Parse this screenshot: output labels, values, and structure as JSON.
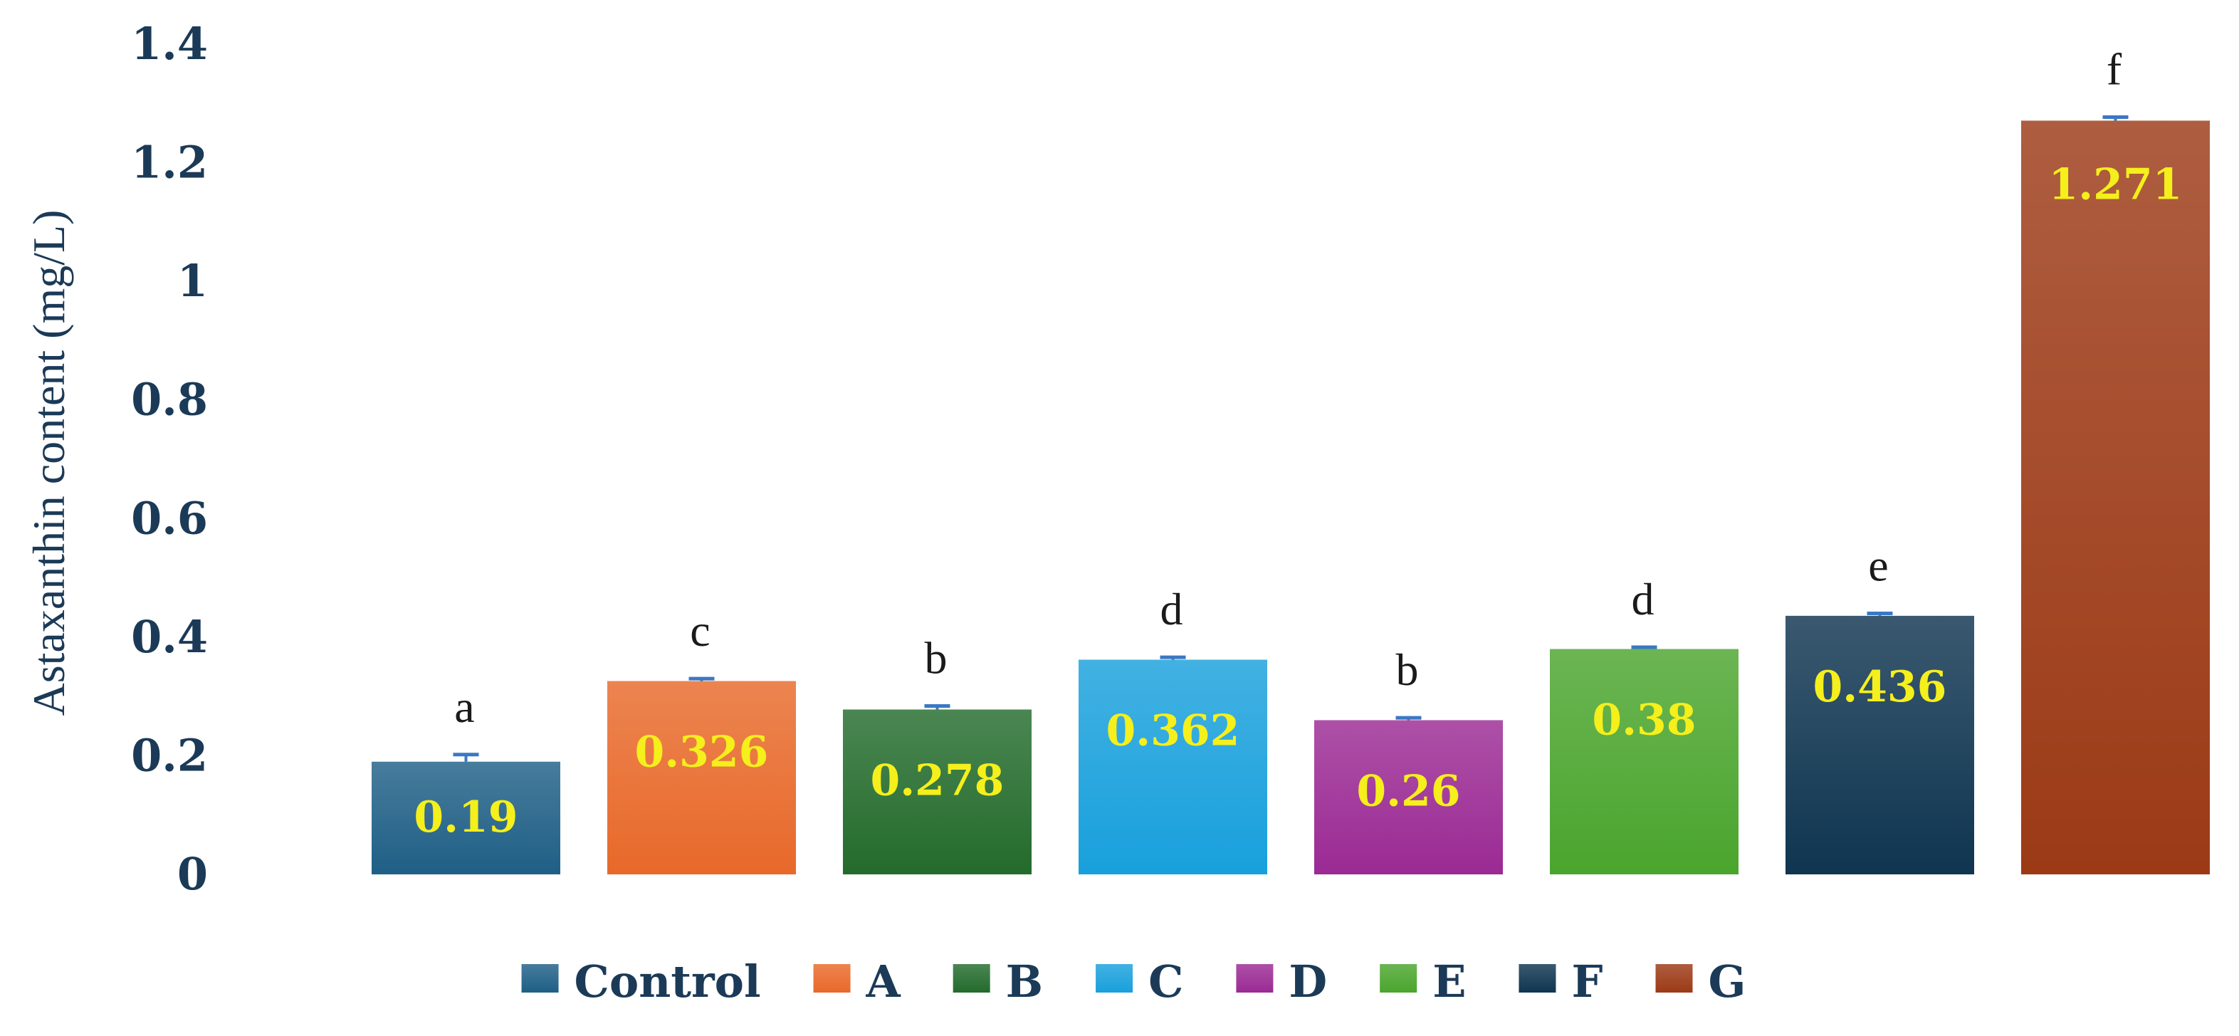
{
  "chart_data": {
    "type": "bar",
    "title": "",
    "xlabel": "",
    "ylabel": "Astaxanthin content (mg/L)",
    "ylim": [
      0,
      1.4
    ],
    "yticks": [
      "0",
      "0.2",
      "0.4",
      "0.6",
      "0.8",
      "1",
      "1.2",
      "1.4"
    ],
    "grid": false,
    "legend_position": "bottom",
    "categories": [
      "Control",
      "A",
      "B",
      "C",
      "D",
      "E",
      "F",
      "G"
    ],
    "values": [
      0.19,
      0.326,
      0.278,
      0.362,
      0.26,
      0.38,
      0.436,
      1.271
    ],
    "value_labels": [
      "0.19",
      "0.326",
      "0.278",
      "0.362",
      "0.26",
      "0.38",
      "0.436",
      "1.271"
    ],
    "error": [
      0.012,
      0.004,
      0.006,
      0.004,
      0.004,
      0.003,
      0.004,
      0.006
    ],
    "significance_letters": [
      "a",
      "c",
      "b",
      "d",
      "b",
      "d",
      "e",
      "f"
    ],
    "colors": [
      "#1f5f86",
      "#e8692a",
      "#236b2c",
      "#18a0dc",
      "#9b2a94",
      "#4aa52d",
      "#0f3550",
      "#9c3a16"
    ],
    "value_label_color": "#f5ef1c",
    "errorbar_color": "#3a78c2"
  }
}
